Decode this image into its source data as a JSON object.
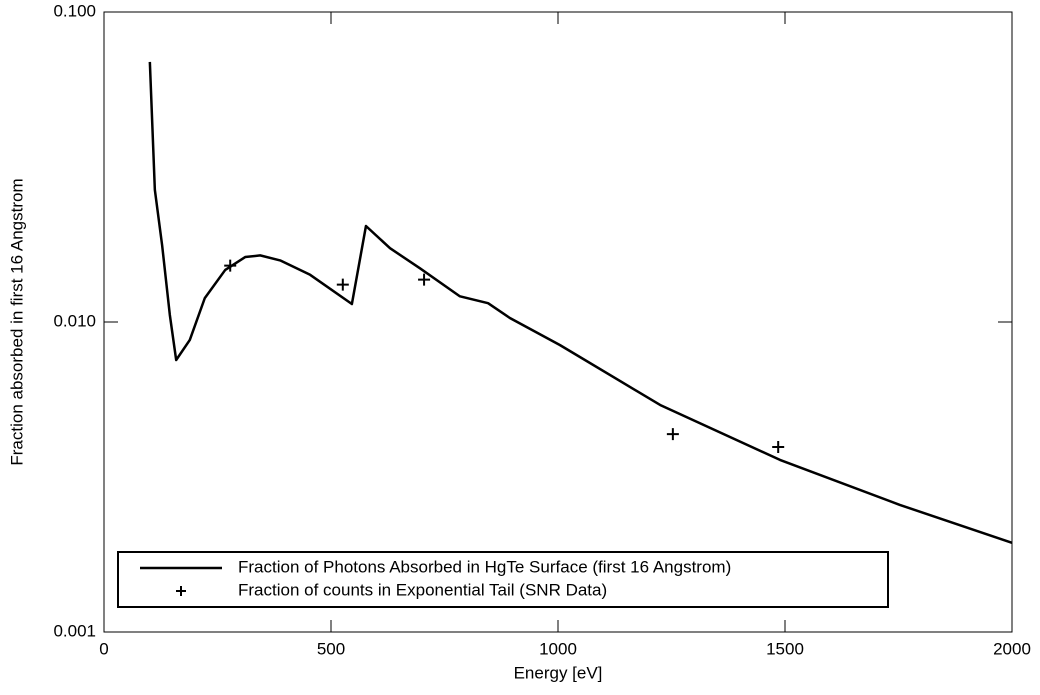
{
  "chart_data": {
    "type": "line",
    "xlabel": "Energy [eV]",
    "ylabel": "Fraction absorbed in first 16 Angstrom",
    "xlim": [
      0,
      2000
    ],
    "xticks": [
      0,
      500,
      1000,
      1500,
      2000
    ],
    "ylim": [
      0.001,
      0.1
    ],
    "ylog": true,
    "yticks": [
      {
        "value": 0.001,
        "label": "0.001"
      },
      {
        "value": 0.01,
        "label": "0.010"
      },
      {
        "value": 0.1,
        "label": "0.100"
      }
    ],
    "legend": "lower left",
    "series": [
      {
        "name": "Fraction of Photons Absorbed in HgTe Surface (first 16 Angstrom)",
        "color": "#000000",
        "style": "line",
        "x": [
          101,
          112,
          128,
          145,
          159,
          189,
          222,
          267,
          311,
          344,
          388,
          454,
          546,
          577,
          630,
          696,
          784,
          846,
          894,
          1004,
          1225,
          1489,
          1753,
          2000
        ],
        "values": [
          0.069,
          0.0267,
          0.0177,
          0.01054,
          0.00754,
          0.00875,
          0.01194,
          0.01472,
          0.0162,
          0.0164,
          0.0158,
          0.0142,
          0.01143,
          0.0204,
          0.0173,
          0.0149,
          0.0121,
          0.0115,
          0.0103,
          0.00843,
          0.0054,
          0.00359,
          0.00257,
          0.00194
        ]
      },
      {
        "name": "Fraction of counts in Exponential Tail (SNR Data)",
        "color": "#000000",
        "style": "plus",
        "x": [
          278,
          526,
          705,
          1253,
          1485
        ],
        "values": [
          0.0152,
          0.0132,
          0.0137,
          0.00435,
          0.00395
        ]
      }
    ]
  }
}
